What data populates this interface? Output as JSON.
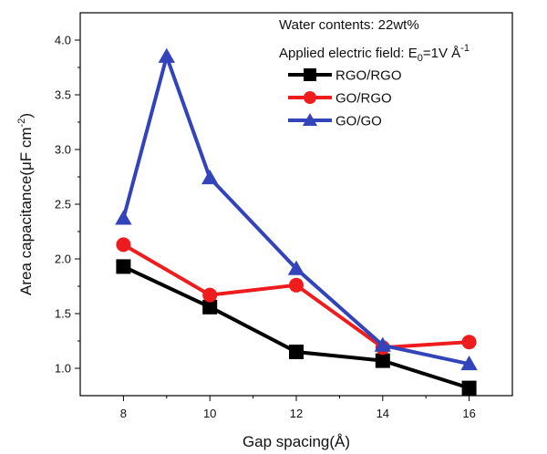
{
  "chart_data": {
    "type": "line",
    "xlabel_main": "Gap spacing",
    "xlabel_unit": "(Å)",
    "ylabel_main": "Area capacitance(μF cm",
    "ylabel_exp": "-2",
    "ylabel_close": ")",
    "xlim": [
      7,
      17
    ],
    "ylim": [
      0.75,
      4.25
    ],
    "xticks": [
      8,
      10,
      12,
      14,
      16
    ],
    "yticks": [
      1.0,
      1.5,
      2.0,
      2.5,
      3.0,
      3.5,
      4.0
    ],
    "annotations": {
      "water": "Water contents: 22wt%",
      "field_prefix": "Applied electric field: E",
      "field_sub": "0",
      "field_mid": "=1V Å",
      "field_exp": "-1"
    },
    "legend_position": "top-right",
    "series": [
      {
        "name": "RGO/RGO",
        "color": "#000000",
        "marker": "square",
        "x": [
          8,
          10,
          12,
          14,
          16
        ],
        "y": [
          1.93,
          1.56,
          1.15,
          1.07,
          0.82
        ]
      },
      {
        "name": "GO/RGO",
        "color": "#ee1c1c",
        "marker": "circle",
        "x": [
          8,
          10,
          12,
          14,
          16
        ],
        "y": [
          2.13,
          1.67,
          1.76,
          1.19,
          1.24
        ]
      },
      {
        "name": "GO/GO",
        "color": "#3344bb",
        "marker": "triangle",
        "x": [
          8,
          9,
          10,
          12,
          14,
          16
        ],
        "y": [
          2.37,
          3.85,
          2.74,
          1.91,
          1.21,
          1.04
        ]
      }
    ]
  }
}
